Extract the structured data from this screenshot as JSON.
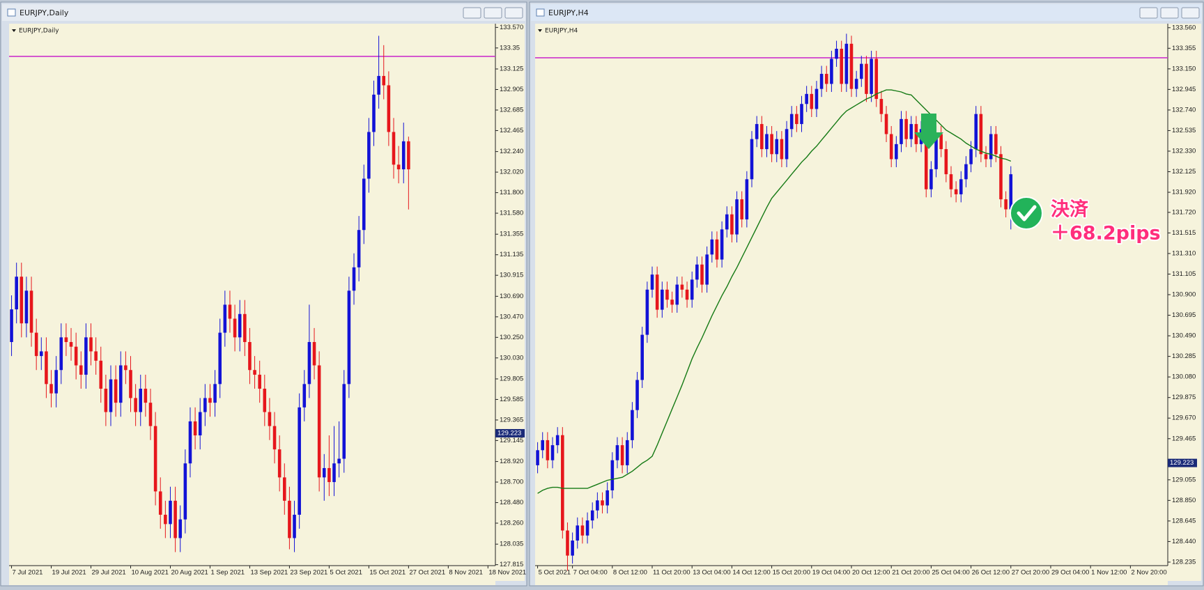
{
  "chart_data": [
    {
      "type": "candlestick",
      "title": "EURJPY,Daily",
      "background": "#f6f3dc",
      "up_color": "#1212d6",
      "down_color": "#e6161c",
      "xlim": [
        -0.5,
        97.5
      ],
      "xticks": [
        {
          "value": 0,
          "label": "7 Jul 2021"
        },
        {
          "value": 8,
          "label": "19 Jul 2021"
        },
        {
          "value": 16,
          "label": "29 Jul 2021"
        },
        {
          "value": 24,
          "label": "10 Aug 2021"
        },
        {
          "value": 32,
          "label": "20 Aug 2021"
        },
        {
          "value": 40,
          "label": "1 Sep 2021"
        },
        {
          "value": 48,
          "label": "13 Sep 2021"
        },
        {
          "value": 56,
          "label": "23 Sep 2021"
        },
        {
          "value": 64,
          "label": "5 Oct 2021"
        },
        {
          "value": 72,
          "label": "15 Oct 2021"
        },
        {
          "value": 80,
          "label": "27 Oct 2021"
        },
        {
          "value": 88,
          "label": "8 Nov 2021"
        },
        {
          "value": 96,
          "label": "18 Nov 2021"
        }
      ],
      "ylim": [
        127.805,
        133.61
      ],
      "yticks": [
        {
          "value": 133.57,
          "label": "133.570"
        },
        133.35,
        133.125,
        132.905,
        132.685,
        132.465,
        {
          "value": 132.24,
          "label": "132.240"
        },
        {
          "value": 132.02,
          "label": "132.020"
        },
        {
          "value": 131.8,
          "label": "131.800"
        },
        {
          "value": 131.58,
          "label": "131.580"
        },
        131.355,
        131.135,
        130.915,
        {
          "value": 130.69,
          "label": "130.690"
        },
        {
          "value": 130.47,
          "label": "130.470"
        },
        {
          "value": 130.25,
          "label": "130.250"
        },
        {
          "value": 130.03,
          "label": "130.030"
        },
        129.805,
        129.585,
        129.365,
        129.145,
        {
          "value": 128.92,
          "label": "128.920"
        },
        {
          "value": 128.7,
          "label": "128.700"
        },
        {
          "value": 128.48,
          "label": "128.480"
        },
        {
          "value": 128.26,
          "label": "128.260"
        },
        128.035,
        127.815
      ],
      "hlines": [
        {
          "value": 133.26,
          "color": "#cc33cc"
        }
      ],
      "price_label": 129.223,
      "price_label_color": "#1a2a78",
      "open": [
        130.2,
        130.55,
        130.9,
        130.4,
        130.75,
        130.3,
        130.05,
        130.1,
        129.75,
        129.65,
        129.9,
        130.25,
        130.2,
        130.15,
        129.95,
        129.85,
        130.25,
        130.1,
        130.0,
        129.7,
        129.45,
        129.8,
        129.55,
        129.95,
        129.9,
        129.6,
        129.45,
        129.7,
        129.55,
        129.3,
        128.6,
        128.35,
        128.25,
        128.5,
        128.1,
        128.3,
        128.9,
        129.35,
        129.2,
        129.45,
        129.6,
        129.55,
        129.75,
        130.3,
        130.6,
        130.45,
        130.25,
        130.5,
        130.2,
        129.9,
        129.85,
        129.7,
        129.45,
        129.3,
        129.05,
        128.75,
        128.5,
        128.1,
        128.35,
        129.5,
        129.75,
        130.2,
        129.95,
        128.75,
        128.85,
        128.7,
        128.9,
        128.95,
        129.75,
        130.75,
        131.0,
        131.4,
        131.95,
        132.45,
        132.85,
        133.05,
        132.95,
        132.45,
        132.1,
        132.05,
        132.35
      ],
      "high": [
        130.7,
        131.05,
        131.05,
        130.9,
        130.9,
        130.45,
        130.25,
        130.25,
        129.9,
        130.05,
        130.4,
        130.4,
        130.35,
        130.3,
        130.1,
        130.4,
        130.4,
        130.25,
        130.15,
        129.85,
        129.95,
        129.95,
        130.1,
        130.1,
        130.05,
        129.75,
        129.85,
        129.85,
        129.7,
        129.45,
        128.75,
        128.5,
        128.65,
        128.65,
        128.45,
        129.05,
        129.5,
        129.5,
        129.6,
        129.75,
        129.75,
        129.9,
        130.45,
        130.75,
        130.75,
        130.6,
        130.65,
        130.65,
        130.35,
        130.05,
        130.0,
        129.85,
        129.6,
        129.45,
        129.2,
        128.9,
        128.65,
        128.5,
        129.65,
        129.9,
        130.6,
        130.35,
        130.1,
        129.0,
        129.2,
        129.3,
        129.35,
        129.9,
        130.9,
        131.15,
        131.55,
        132.1,
        132.6,
        133.0,
        133.48,
        133.38,
        133.1,
        132.6,
        132.3,
        132.55,
        132.4
      ],
      "low": [
        130.05,
        130.4,
        130.25,
        130.25,
        130.15,
        129.9,
        129.9,
        129.6,
        129.5,
        129.5,
        129.75,
        130.05,
        130.0,
        129.8,
        129.7,
        129.7,
        129.95,
        129.85,
        129.55,
        129.3,
        129.3,
        129.4,
        129.4,
        129.75,
        129.45,
        129.3,
        129.3,
        129.4,
        129.15,
        128.45,
        128.2,
        128.1,
        128.1,
        127.95,
        127.95,
        128.15,
        128.75,
        129.05,
        129.05,
        129.3,
        129.4,
        129.4,
        129.6,
        130.15,
        130.3,
        130.1,
        130.1,
        130.05,
        129.75,
        129.7,
        129.55,
        129.3,
        129.15,
        128.9,
        128.6,
        128.35,
        127.98,
        127.95,
        128.2,
        129.35,
        129.6,
        129.8,
        128.6,
        128.5,
        128.55,
        128.55,
        128.75,
        128.8,
        129.6,
        130.6,
        130.85,
        131.25,
        131.8,
        132.3,
        132.7,
        132.8,
        132.3,
        131.95,
        131.9,
        131.9,
        131.62
      ],
      "close": [
        130.55,
        130.9,
        130.4,
        130.75,
        130.3,
        130.05,
        130.1,
        129.75,
        129.65,
        129.9,
        130.25,
        130.2,
        130.15,
        129.95,
        129.85,
        130.25,
        130.1,
        130.0,
        129.7,
        129.45,
        129.8,
        129.55,
        129.95,
        129.9,
        129.6,
        129.45,
        129.7,
        129.55,
        129.3,
        128.6,
        128.35,
        128.25,
        128.5,
        128.1,
        128.3,
        128.9,
        129.35,
        129.2,
        129.45,
        129.6,
        129.55,
        129.75,
        130.3,
        130.6,
        130.45,
        130.25,
        130.5,
        130.2,
        129.9,
        129.85,
        129.7,
        129.45,
        129.3,
        129.05,
        128.75,
        128.5,
        128.1,
        128.35,
        129.5,
        129.75,
        130.2,
        129.95,
        128.75,
        128.85,
        128.7,
        128.9,
        128.95,
        129.75,
        130.75,
        131.0,
        131.4,
        131.95,
        132.45,
        132.85,
        133.05,
        132.95,
        132.45,
        132.1,
        132.05,
        132.35,
        132.05
      ]
    },
    {
      "type": "candlestick",
      "title": "EURJPY,H4",
      "background": "#f6f3dc",
      "up_color": "#1212d6",
      "down_color": "#e6161c",
      "xlim": [
        -0.5,
        126.5
      ],
      "xticks": [
        {
          "value": 0,
          "label": "5 Oct 2021"
        },
        {
          "value": 7,
          "label": "7 Oct 04:00"
        },
        {
          "value": 15,
          "label": "8 Oct 12:00"
        },
        {
          "value": 23,
          "label": "11 Oct 20:00"
        },
        {
          "value": 31,
          "label": "13 Oct 04:00"
        },
        {
          "value": 39,
          "label": "14 Oct 12:00"
        },
        {
          "value": 47,
          "label": "15 Oct 20:00"
        },
        {
          "value": 55,
          "label": "19 Oct 04:00"
        },
        {
          "value": 63,
          "label": "20 Oct 12:00"
        },
        {
          "value": 71,
          "label": "21 Oct 20:00"
        },
        {
          "value": 79,
          "label": "25 Oct 04:00"
        },
        {
          "value": 87,
          "label": "26 Oct 12:00"
        },
        {
          "value": 95,
          "label": "27 Oct 20:00"
        },
        {
          "value": 103,
          "label": "29 Oct 04:00"
        },
        {
          "value": 111,
          "label": "1 Nov 12:00"
        },
        {
          "value": 119,
          "label": "2 Nov 20:00"
        }
      ],
      "ylim": [
        128.2,
        133.6
      ],
      "yticks": [
        {
          "value": 133.56,
          "label": "133.560"
        },
        133.355,
        {
          "value": 133.15,
          "label": "133.150"
        },
        132.945,
        {
          "value": 132.74,
          "label": "132.740"
        },
        132.535,
        {
          "value": 132.33,
          "label": "132.330"
        },
        132.125,
        {
          "value": 131.92,
          "label": "131.920"
        },
        {
          "value": 131.72,
          "label": "131.720"
        },
        131.515,
        {
          "value": 131.31,
          "label": "131.310"
        },
        131.105,
        {
          "value": 130.9,
          "label": "130.900"
        },
        130.695,
        {
          "value": 130.49,
          "label": "130.490"
        },
        130.285,
        {
          "value": 130.08,
          "label": "130.080"
        },
        129.875,
        {
          "value": 129.67,
          "label": "129.670"
        },
        129.465,
        129.055,
        {
          "value": 128.85,
          "label": "128.850"
        },
        128.645,
        {
          "value": 128.44,
          "label": "128.440"
        },
        128.235
      ],
      "hlines": [
        {
          "value": 133.26,
          "color": "#cc33cc"
        }
      ],
      "price_label": 129.223,
      "price_label_color": "#1a2a78",
      "ma": {
        "color": "#157a15",
        "values": [
          128.92,
          128.95,
          128.97,
          128.98,
          128.98,
          128.97,
          128.97,
          128.97,
          128.97,
          128.97,
          128.97,
          128.99,
          129.01,
          129.03,
          129.05,
          129.06,
          129.07,
          129.08,
          129.11,
          129.14,
          129.18,
          129.22,
          129.25,
          129.29,
          129.4,
          129.52,
          129.64,
          129.76,
          129.88,
          130.0,
          130.13,
          130.26,
          130.37,
          130.47,
          130.58,
          130.69,
          130.79,
          130.89,
          130.98,
          131.08,
          131.17,
          131.27,
          131.37,
          131.47,
          131.57,
          131.67,
          131.77,
          131.86,
          131.92,
          131.98,
          132.04,
          132.1,
          132.16,
          132.22,
          132.27,
          132.33,
          132.38,
          132.44,
          132.5,
          132.56,
          132.62,
          132.68,
          132.73,
          132.76,
          132.79,
          132.82,
          132.85,
          132.87,
          132.9,
          132.92,
          132.94,
          132.94,
          132.93,
          132.92,
          132.9,
          132.89,
          132.84,
          132.79,
          132.74,
          132.69,
          132.64,
          132.59,
          132.54,
          132.51,
          132.48,
          132.45,
          132.41,
          132.38,
          132.35,
          132.33,
          132.31,
          132.3,
          132.28,
          132.26,
          132.25,
          132.23
        ]
      },
      "open": [
        129.2,
        129.35,
        129.45,
        129.25,
        129.4,
        129.5,
        128.55,
        128.3,
        128.45,
        128.6,
        128.5,
        128.65,
        128.75,
        128.85,
        128.8,
        128.95,
        129.25,
        129.4,
        129.2,
        129.45,
        129.75,
        130.05,
        130.5,
        130.95,
        131.1,
        130.75,
        130.95,
        130.85,
        130.8,
        131.0,
        130.95,
        130.85,
        131.05,
        131.2,
        131.0,
        131.3,
        131.45,
        131.25,
        131.55,
        131.7,
        131.5,
        131.85,
        131.65,
        132.05,
        132.45,
        132.6,
        132.35,
        132.5,
        132.3,
        132.45,
        132.25,
        132.55,
        132.7,
        132.6,
        132.8,
        132.9,
        132.75,
        132.95,
        133.1,
        133.0,
        133.25,
        133.35,
        133.0,
        133.4,
        132.95,
        133.05,
        133.2,
        132.9,
        133.25,
        132.85,
        132.7,
        132.5,
        132.25,
        132.4,
        132.65,
        132.45,
        132.6,
        132.4,
        132.55,
        131.95,
        132.15,
        132.5,
        132.35,
        132.1,
        131.95,
        131.9,
        132.05,
        132.2,
        132.35,
        132.7,
        132.3,
        132.25,
        132.5,
        132.3,
        131.85,
        131.75
      ],
      "high": [
        129.43,
        129.53,
        129.53,
        129.48,
        129.58,
        129.58,
        128.63,
        128.53,
        128.68,
        128.68,
        128.73,
        128.83,
        128.93,
        128.93,
        129.03,
        129.33,
        129.48,
        129.48,
        129.53,
        129.83,
        130.13,
        130.58,
        131.03,
        131.18,
        131.18,
        131.03,
        131.03,
        130.93,
        131.08,
        131.08,
        131.03,
        131.13,
        131.28,
        131.28,
        131.38,
        131.53,
        131.53,
        131.63,
        131.78,
        131.78,
        131.93,
        131.93,
        132.13,
        132.53,
        132.68,
        132.68,
        132.58,
        132.58,
        132.53,
        132.53,
        132.63,
        132.78,
        132.78,
        132.88,
        132.98,
        132.98,
        133.03,
        133.18,
        133.18,
        133.33,
        133.43,
        133.43,
        133.5,
        133.48,
        133.13,
        133.28,
        133.28,
        133.33,
        133.33,
        132.93,
        132.78,
        132.58,
        132.48,
        132.73,
        132.73,
        132.68,
        132.68,
        132.63,
        132.63,
        132.23,
        132.58,
        132.58,
        132.43,
        132.18,
        132.03,
        132.13,
        132.28,
        132.43,
        132.78,
        132.78,
        132.38,
        132.58,
        132.58,
        132.38,
        131.93,
        132.18
      ],
      "low": [
        129.12,
        129.27,
        129.17,
        129.17,
        129.32,
        128.47,
        128.15,
        128.22,
        128.37,
        128.42,
        128.42,
        128.57,
        128.67,
        128.72,
        128.72,
        128.87,
        129.17,
        129.12,
        129.12,
        129.37,
        129.67,
        129.97,
        130.42,
        130.87,
        130.67,
        130.67,
        130.77,
        130.72,
        130.72,
        130.87,
        130.77,
        130.77,
        130.97,
        130.92,
        130.92,
        131.22,
        131.17,
        131.17,
        131.47,
        131.42,
        131.42,
        131.57,
        131.57,
        131.97,
        132.37,
        132.27,
        132.27,
        132.22,
        132.22,
        132.17,
        132.17,
        132.47,
        132.52,
        132.52,
        132.72,
        132.67,
        132.67,
        132.87,
        132.92,
        132.92,
        133.17,
        132.92,
        132.92,
        132.87,
        132.87,
        132.97,
        132.82,
        132.82,
        132.77,
        132.62,
        132.42,
        132.17,
        132.17,
        132.32,
        132.37,
        132.37,
        132.32,
        132.32,
        131.87,
        131.87,
        132.07,
        132.27,
        132.02,
        131.87,
        131.82,
        131.82,
        131.97,
        132.12,
        132.27,
        132.22,
        132.17,
        132.17,
        132.22,
        131.77,
        131.67,
        131.55
      ],
      "close": [
        129.35,
        129.45,
        129.25,
        129.4,
        129.5,
        128.55,
        128.3,
        128.45,
        128.6,
        128.5,
        128.65,
        128.75,
        128.85,
        128.8,
        128.95,
        129.25,
        129.4,
        129.2,
        129.45,
        129.75,
        130.05,
        130.5,
        130.95,
        131.1,
        130.75,
        130.95,
        130.85,
        130.8,
        131.0,
        130.95,
        130.85,
        131.05,
        131.2,
        131.0,
        131.3,
        131.45,
        131.25,
        131.55,
        131.7,
        131.5,
        131.85,
        131.65,
        132.05,
        132.45,
        132.6,
        132.35,
        132.5,
        132.3,
        132.45,
        132.25,
        132.55,
        132.7,
        132.6,
        132.8,
        132.9,
        132.75,
        132.95,
        133.1,
        133.0,
        133.25,
        133.35,
        133.0,
        133.4,
        132.95,
        133.05,
        133.2,
        132.9,
        133.25,
        132.85,
        132.7,
        132.5,
        132.25,
        132.4,
        132.65,
        132.45,
        132.6,
        132.4,
        132.55,
        131.95,
        132.15,
        132.5,
        132.35,
        132.1,
        131.95,
        131.9,
        132.05,
        132.2,
        132.35,
        132.7,
        132.3,
        132.25,
        132.5,
        132.3,
        131.85,
        131.75,
        132.1
      ],
      "annotations": {
        "exit_label": "決済",
        "profit_label": "＋68.2pips"
      }
    }
  ]
}
